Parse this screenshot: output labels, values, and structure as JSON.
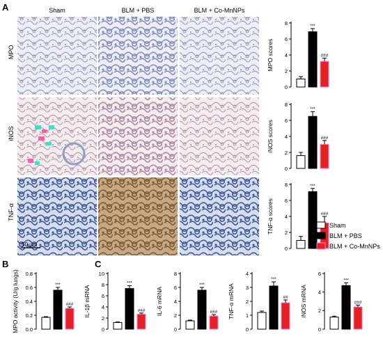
{
  "panel_labels": {
    "a": "A",
    "b": "B",
    "c": "C"
  },
  "legend": {
    "items": [
      {
        "label": "Sham",
        "color": "#ffffff"
      },
      {
        "label": "BLM + PBS",
        "color": "#000000"
      },
      {
        "label": "BLM + Co-MnNPs",
        "color": "#e42222"
      }
    ],
    "accent_edge": "#ee82ee"
  },
  "histology": {
    "columns": [
      "Sham",
      "BLM + PBS",
      "BLM + Co-MnNPs"
    ],
    "rows": [
      "MPO",
      "iNOS",
      "TNF-α"
    ],
    "scale_bar": "50 μm",
    "tissue_colors": {
      "MPO": {
        "bg": "#eeedf3",
        "fg": "#7f8fbf"
      },
      "iNOS": {
        "bg": "#f3eded",
        "fg": "#b086a6"
      },
      "TNF-α": {
        "bg": "#d7dced",
        "fg": "#3b5a9c"
      },
      "TNF-α-brown": {
        "bg": "#c7a886",
        "fg": "#7d5a33"
      }
    }
  },
  "chart_data": [
    {
      "id": "mpo-scores",
      "type": "bar",
      "categories": [
        "Sham",
        "BLM + PBS",
        "BLM + Co-MnNPs"
      ],
      "values": [
        1.0,
        6.9,
        3.2
      ],
      "errors": [
        0.3,
        0.4,
        0.4
      ],
      "ylabel": "MPO scores",
      "ylim": [
        0,
        8
      ],
      "yticks": [
        "0",
        "2",
        "4",
        "6",
        "8"
      ],
      "yticks_num": [
        0,
        2,
        4,
        6,
        8
      ],
      "annotations": [
        "",
        "***",
        "###"
      ]
    },
    {
      "id": "inos-scores",
      "type": "bar",
      "categories": [
        "Sham",
        "BLM + PBS",
        "BLM + Co-MnNPs"
      ],
      "values": [
        1.6,
        6.5,
        3.0
      ],
      "errors": [
        0.4,
        0.6,
        0.5
      ],
      "ylabel": "iNOS scores",
      "ylim": [
        0,
        8
      ],
      "yticks": [
        "0",
        "2",
        "4",
        "6",
        "8"
      ],
      "yticks_num": [
        0,
        2,
        4,
        6,
        8
      ],
      "annotations": [
        "",
        "***",
        "###"
      ]
    },
    {
      "id": "tnf-scores",
      "type": "bar",
      "categories": [
        "Sham",
        "BLM + PBS",
        "BLM + Co-MnNPs"
      ],
      "values": [
        1.0,
        7.1,
        3.2
      ],
      "errors": [
        0.5,
        0.4,
        0.8
      ],
      "ylabel": "TNF-α scores",
      "ylim": [
        0,
        8
      ],
      "yticks": [
        "0",
        "2",
        "4",
        "6",
        "8"
      ],
      "yticks_num": [
        0,
        2,
        4,
        6,
        8
      ],
      "annotations": [
        "",
        "***",
        "###"
      ]
    },
    {
      "id": "mpo-activity",
      "type": "bar",
      "categories": [
        "Sham",
        "BLM + PBS",
        "BLM + Co-MnNPs"
      ],
      "values": [
        0.17,
        0.56,
        0.3
      ],
      "errors": [
        0.01,
        0.04,
        0.02
      ],
      "ylabel": "MPO activity (U/g lungs)",
      "ylim": [
        0,
        0.8
      ],
      "yticks": [
        "0.0",
        "0.2",
        "0.4",
        "0.6",
        "0.8"
      ],
      "yticks_num": [
        0,
        0.2,
        0.4,
        0.6,
        0.8
      ],
      "annotations": [
        "",
        "***",
        "###"
      ]
    },
    {
      "id": "il1b-mrna",
      "type": "bar",
      "categories": [
        "Sham",
        "BLM + PBS",
        "BLM + Co-MnNPs"
      ],
      "values": [
        1.2,
        7.3,
        2.7
      ],
      "errors": [
        0.1,
        0.5,
        0.2
      ],
      "ylabel": "IL-1β mRNA",
      "ylim": [
        0,
        10
      ],
      "yticks": [
        "0",
        "2",
        "4",
        "6",
        "8",
        "10"
      ],
      "yticks_num": [
        0,
        2,
        4,
        6,
        8,
        10
      ],
      "annotations": [
        "",
        "***",
        "###"
      ]
    },
    {
      "id": "il6-mrna",
      "type": "bar",
      "categories": [
        "Sham",
        "BLM + PBS",
        "BLM + Co-MnNPs"
      ],
      "values": [
        1.2,
        5.6,
        1.9
      ],
      "errors": [
        0.1,
        0.4,
        0.2
      ],
      "ylabel": "IL-6 mRNA",
      "ylim": [
        0,
        8
      ],
      "yticks": [
        "0",
        "2",
        "4",
        "6",
        "8"
      ],
      "yticks_num": [
        0,
        2,
        4,
        6,
        8
      ],
      "annotations": [
        "",
        "***",
        "###"
      ]
    },
    {
      "id": "tnf-mrna",
      "type": "bar",
      "categories": [
        "Sham",
        "BLM + PBS",
        "BLM + Co-MnNPs"
      ],
      "values": [
        1.2,
        3.1,
        1.9
      ],
      "errors": [
        0.1,
        0.3,
        0.2
      ],
      "ylabel": "TNF-α mRNA",
      "ylim": [
        0,
        4
      ],
      "yticks": [
        "0",
        "1",
        "2",
        "3",
        "4"
      ],
      "yticks_num": [
        0,
        1,
        2,
        3,
        4
      ],
      "annotations": [
        "",
        "***",
        "##"
      ]
    },
    {
      "id": "inos-mrna",
      "type": "bar",
      "categories": [
        "Sham",
        "BLM + PBS",
        "BLM + Co-MnNPs"
      ],
      "values": [
        1.3,
        4.7,
        2.4
      ],
      "errors": [
        0.1,
        0.3,
        0.2
      ],
      "ylabel": "iNOS mRNA",
      "ylim": [
        0,
        6
      ],
      "yticks": [
        "0",
        "2",
        "4",
        "6"
      ],
      "yticks_num": [
        0,
        2,
        4,
        6
      ],
      "annotations": [
        "",
        "***",
        "###"
      ]
    }
  ]
}
